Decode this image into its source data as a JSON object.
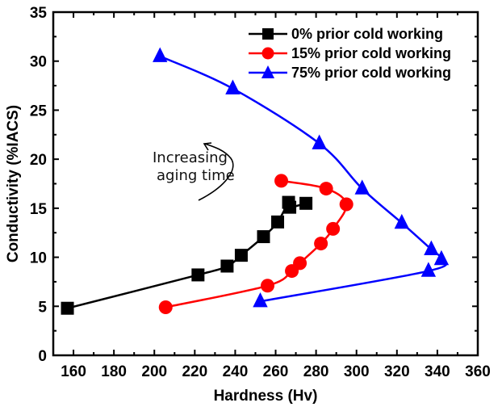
{
  "chart_data": {
    "type": "line",
    "title": "",
    "xlabel": "Hardness (Hv)",
    "ylabel": "Conductivity (%IACS)",
    "xlim": [
      150,
      360
    ],
    "ylim": [
      0,
      35
    ],
    "xticks": [
      160,
      180,
      200,
      220,
      240,
      260,
      280,
      300,
      320,
      340,
      360
    ],
    "xtick_labels": [
      "160",
      "180",
      "200",
      "220",
      "240",
      "260",
      "280",
      "300",
      "320",
      "340",
      "360"
    ],
    "yticks": [
      0,
      5,
      10,
      15,
      20,
      25,
      30,
      35
    ],
    "ytick_labels": [
      "0",
      "5",
      "10",
      "15",
      "20",
      "25",
      "30",
      "35"
    ],
    "grid": false,
    "legend_position": "top-right",
    "series": [
      {
        "name": "0% prior cold working",
        "color": "#000000",
        "marker": "square",
        "x": [
          157,
          221.6,
          236,
          243,
          254,
          261,
          266.4,
          267,
          275
        ],
        "y": [
          4.8,
          8.2,
          9.1,
          10.2,
          12.1,
          13.6,
          15.6,
          15.1,
          15.5
        ]
      },
      {
        "name": "15% prior cold working",
        "color": "#ff0000",
        "marker": "circle",
        "x": [
          205.6,
          256,
          268,
          272,
          282.4,
          288.4,
          295,
          285,
          262.8
        ],
        "y": [
          4.9,
          7.1,
          8.6,
          9.4,
          11.4,
          12.9,
          15.4,
          17.0,
          17.8
        ]
      },
      {
        "name": "75% prior cold working",
        "color": "#0000ff",
        "marker": "triangle",
        "x": [
          202.8,
          238.8,
          281.6,
          302.8,
          322.4,
          337,
          342,
          335.6,
          252.4
        ],
        "y": [
          30.5,
          27.2,
          21.6,
          17.0,
          13.5,
          10.8,
          9.8,
          8.6,
          5.5
        ]
      }
    ],
    "annotations": [
      {
        "text_lines": [
          "Increasing",
          "aging time"
        ],
        "type": "curved-arrow",
        "direction": "counter-clockwise"
      }
    ]
  }
}
